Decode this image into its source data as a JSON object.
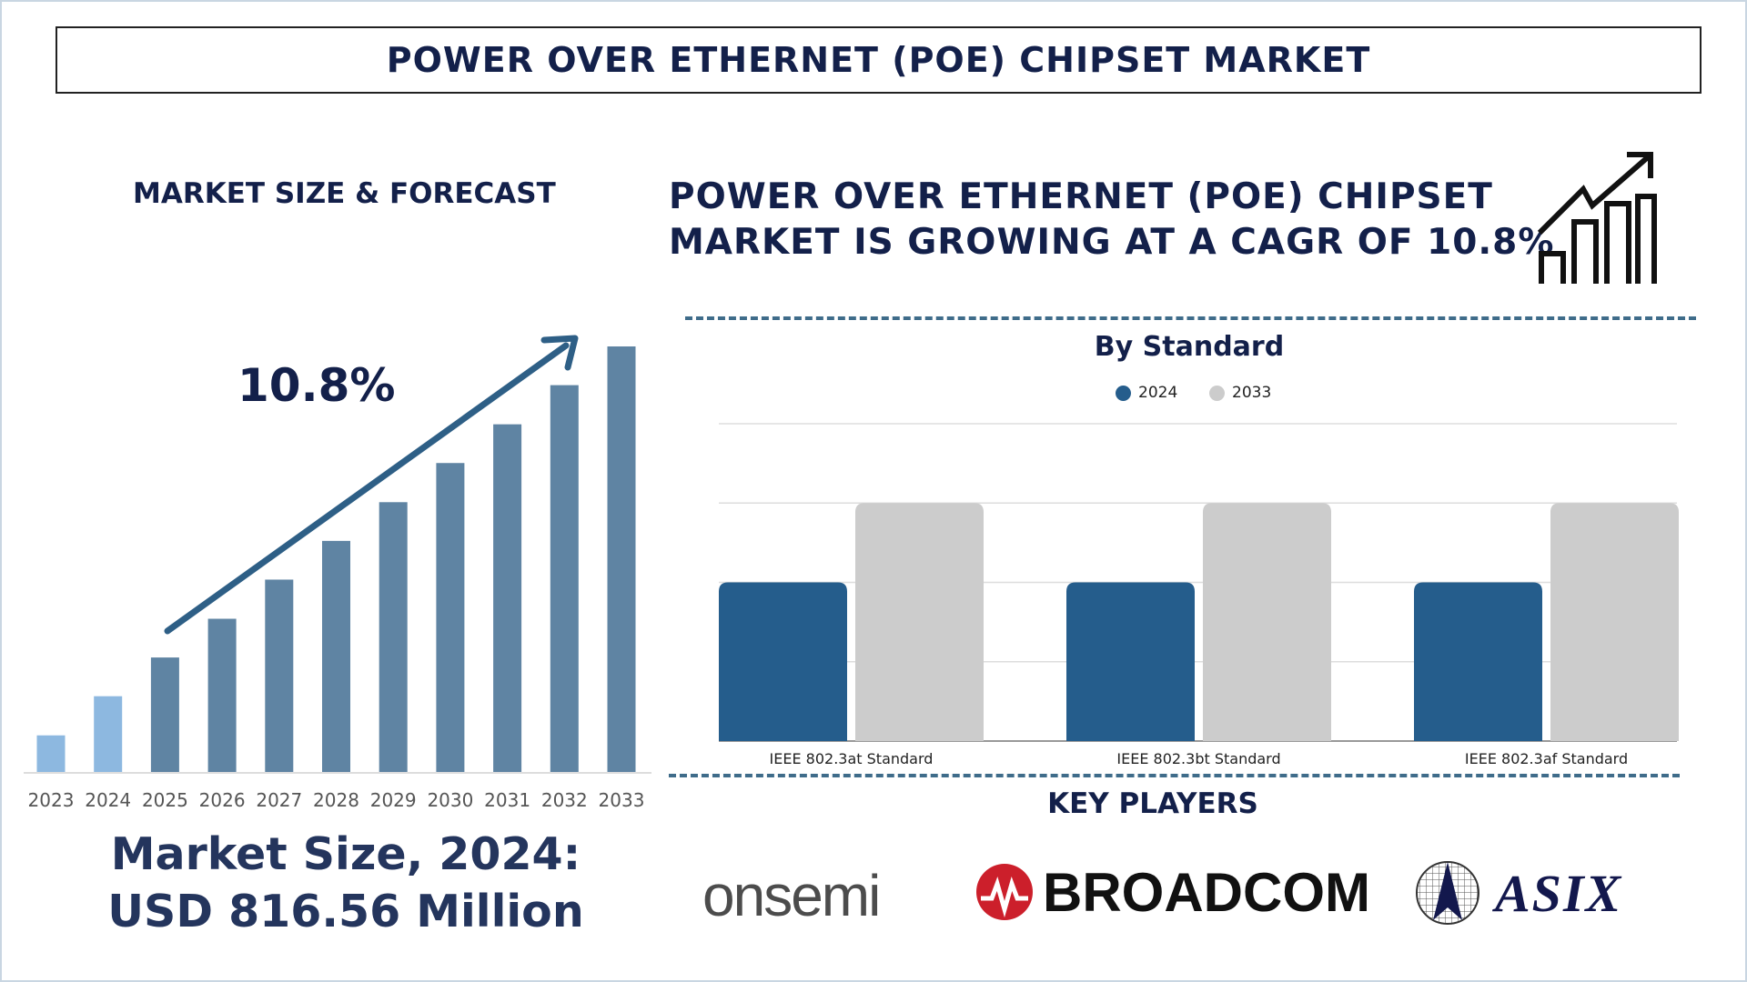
{
  "title": "POWER OVER ETHERNET (POE) CHIPSET MARKET",
  "left": {
    "section_title": "MARKET SIZE & FORECAST",
    "cagr_label": "10.8%",
    "market_size_line1": "Market Size, 2024:",
    "market_size_line2": "USD 816.56 Million"
  },
  "right": {
    "headline_line1": "POWER OVER ETHERNET (POE) CHIPSET",
    "headline_line2": "MARKET IS GROWING AT A CAGR OF 10.8%",
    "icon": "growth-chart-arrow-icon",
    "key_players_title": "KEY PLAYERS",
    "key_players": [
      "onsemi",
      "BROADCOM",
      "ASIX"
    ]
  },
  "chart_data": [
    {
      "type": "bar",
      "title": "",
      "categories": [
        "2023",
        "2024",
        "2025",
        "2026",
        "2027",
        "2028",
        "2029",
        "2030",
        "2031",
        "2032",
        "2033"
      ],
      "values": [
        8.6,
        17.8,
        26.9,
        36.0,
        45.2,
        54.3,
        63.4,
        72.6,
        81.7,
        90.9,
        100
      ],
      "ylim": [
        0,
        100
      ],
      "grid": false,
      "colors": {
        "historical": "#8db8e0",
        "forecast": "#5f84a3",
        "arrow": "#2e5f86"
      }
    },
    {
      "type": "bar",
      "title": "By Standard",
      "categories": [
        "IEEE 802.3at Standard",
        "IEEE 802.3bt Standard",
        "IEEE 802.3af Standard"
      ],
      "series": [
        {
          "name": "2024",
          "values": [
            2,
            2,
            2
          ],
          "color": "#255d8c"
        },
        {
          "name": "2033",
          "values": [
            3,
            3,
            3
          ],
          "color": "#cccccc"
        }
      ],
      "ylim": [
        0,
        4
      ],
      "grid": true,
      "legend": "top-center"
    }
  ]
}
